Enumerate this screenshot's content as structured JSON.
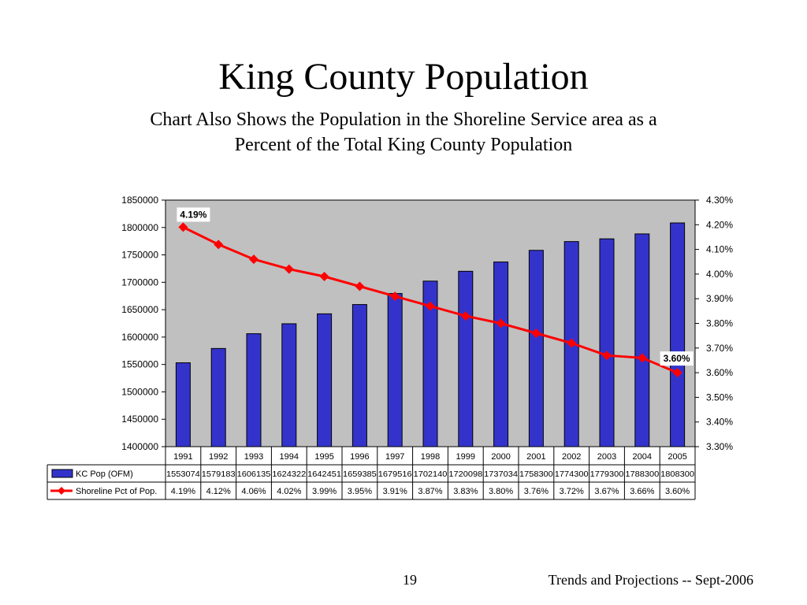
{
  "slide": {
    "title": "King County Population",
    "subtitle_line1": "Chart Also Shows the Population in the Shoreline Service area as a",
    "subtitle_line2": "Percent of the Total King County Population",
    "page_number": "19",
    "footer": "Trends and Projections -- Sept-2006"
  },
  "chart_data": {
    "type": "bar",
    "categories": [
      "1991",
      "1992",
      "1993",
      "1994",
      "1995",
      "1996",
      "1997",
      "1998",
      "1999",
      "2000",
      "2001",
      "2002",
      "2003",
      "2004",
      "2005"
    ],
    "series": [
      {
        "name": "KC Pop (OFM)",
        "type": "bar",
        "axis": "left",
        "values": [
          1553074,
          1579183,
          1606135,
          1624322,
          1642451,
          1659385,
          1679516,
          1702140,
          1720098,
          1737034,
          1758300,
          1774300,
          1779300,
          1788300,
          1808300
        ],
        "labels": [
          "1553074",
          "1579183",
          "1606135",
          "1624322",
          "1642451",
          "1659385",
          "1679516",
          "1702140",
          "1720098",
          "1737034",
          "1758300",
          "1774300",
          "1779300",
          "1788300",
          "1808300"
        ],
        "color": "#3333cc"
      },
      {
        "name": "Shoreline Pct of Pop.",
        "type": "line",
        "axis": "right",
        "values": [
          4.19,
          4.12,
          4.06,
          4.02,
          3.99,
          3.95,
          3.91,
          3.87,
          3.83,
          3.8,
          3.76,
          3.72,
          3.67,
          3.66,
          3.6
        ],
        "labels": [
          "4.19%",
          "4.12%",
          "4.06%",
          "4.02%",
          "3.99%",
          "3.95%",
          "3.91%",
          "3.87%",
          "3.83%",
          "3.80%",
          "3.76%",
          "3.72%",
          "3.67%",
          "3.66%",
          "3.60%"
        ],
        "color": "#ff0000"
      }
    ],
    "ylim": [
      1400000,
      1850000
    ],
    "yticks": [
      "1850000",
      "1800000",
      "1750000",
      "1700000",
      "1650000",
      "1600000",
      "1550000",
      "1500000",
      "1450000",
      "1400000"
    ],
    "y2lim": [
      3.3,
      4.3
    ],
    "y2ticks": [
      "4.30%",
      "4.20%",
      "4.10%",
      "4.00%",
      "3.90%",
      "3.80%",
      "3.70%",
      "3.60%",
      "3.50%",
      "3.40%",
      "3.30%"
    ],
    "annotations": [
      {
        "label": "4.19%",
        "index": 0
      },
      {
        "label": "3.60%",
        "index": 14
      }
    ],
    "plot_background": "#c0c0c0",
    "legend": "data-table"
  }
}
